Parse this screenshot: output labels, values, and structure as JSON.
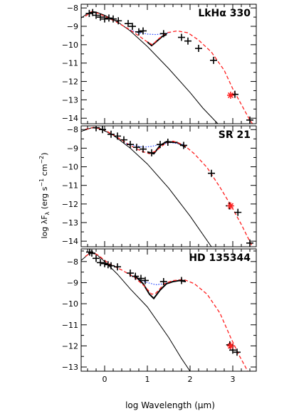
{
  "figure": {
    "xlabel": "log Wavelength (μm)",
    "ylabel_main": "log λF",
    "ylabel_sub": "λ",
    "ylabel_units": " (erg s",
    "ylabel_exp1": "−1",
    "ylabel_mid": " cm",
    "ylabel_exp2": "−2",
    "ylabel_close": ")",
    "colors": {
      "axes": "#000000",
      "photosphere": "#000000",
      "model_red": "#ff2020",
      "model_blue": "#2040ff",
      "star": "#ff2020"
    }
  },
  "chart_data": [
    {
      "type": "scatter",
      "title": "LkHα 330",
      "xlim": [
        -0.55,
        3.55
      ],
      "ylim": [
        -14.3,
        -7.8
      ],
      "xticks": [
        0,
        1,
        2,
        3
      ],
      "yticks": [
        -8,
        -9,
        -10,
        -11,
        -12,
        -13,
        -14
      ],
      "photometry": [
        [
          -0.36,
          -8.3
        ],
        [
          -0.28,
          -8.25
        ],
        [
          -0.2,
          -8.4
        ],
        [
          -0.1,
          -8.5
        ],
        [
          0.0,
          -8.6
        ],
        [
          0.1,
          -8.55
        ],
        [
          0.2,
          -8.6
        ],
        [
          0.32,
          -8.7
        ],
        [
          0.55,
          -8.85
        ],
        [
          0.65,
          -9.0
        ],
        [
          0.8,
          -9.3
        ],
        [
          0.9,
          -9.25
        ],
        [
          1.38,
          -9.4
        ],
        [
          1.8,
          -9.6
        ],
        [
          1.95,
          -9.8
        ],
        [
          2.2,
          -10.2
        ],
        [
          2.55,
          -10.85
        ],
        [
          3.05,
          -12.7
        ],
        [
          3.4,
          -14.1
        ]
      ],
      "submm_star": [
        [
          2.95,
          -12.75
        ]
      ],
      "photosphere": [
        [
          -0.55,
          -8.55
        ],
        [
          -0.4,
          -8.3
        ],
        [
          -0.3,
          -8.2
        ],
        [
          -0.2,
          -8.22
        ],
        [
          0.0,
          -8.4
        ],
        [
          0.3,
          -8.75
        ],
        [
          0.6,
          -9.25
        ],
        [
          1.0,
          -10.1
        ],
        [
          1.5,
          -11.3
        ],
        [
          2.0,
          -12.6
        ],
        [
          2.3,
          -13.45
        ],
        [
          2.65,
          -14.3
        ]
      ],
      "irs_spectrum": [
        [
          1.0,
          -9.85
        ],
        [
          1.1,
          -10.05
        ],
        [
          1.2,
          -9.85
        ],
        [
          1.35,
          -9.55
        ],
        [
          1.45,
          -9.45
        ]
      ],
      "model_red": [
        [
          -0.45,
          -8.45
        ],
        [
          -0.3,
          -8.2
        ],
        [
          -0.15,
          -8.3
        ],
        [
          0.05,
          -8.5
        ],
        [
          0.3,
          -8.8
        ],
        [
          0.6,
          -9.2
        ],
        [
          0.85,
          -9.6
        ],
        [
          1.0,
          -9.85
        ],
        [
          1.12,
          -10.0
        ],
        [
          1.25,
          -9.7
        ],
        [
          1.45,
          -9.35
        ],
        [
          1.7,
          -9.25
        ],
        [
          1.95,
          -9.35
        ],
        [
          2.2,
          -9.75
        ],
        [
          2.5,
          -10.4
        ],
        [
          2.8,
          -11.4
        ],
        [
          3.0,
          -12.4
        ],
        [
          3.2,
          -13.25
        ],
        [
          3.4,
          -14.1
        ],
        [
          3.55,
          -14.6
        ]
      ],
      "model_blue": [
        [
          0.6,
          -9.2
        ],
        [
          0.8,
          -9.35
        ],
        [
          1.0,
          -9.42
        ],
        [
          1.2,
          -9.45
        ],
        [
          1.4,
          -9.4
        ],
        [
          1.55,
          -9.32
        ]
      ]
    },
    {
      "type": "scatter",
      "title": "SR 21",
      "xlim": [
        -0.55,
        3.55
      ],
      "ylim": [
        -14.3,
        -7.8
      ],
      "xticks": [
        0,
        1,
        2,
        3
      ],
      "yticks": [
        -8,
        -9,
        -10,
        -11,
        -12,
        -13,
        -14
      ],
      "photometry": [
        [
          -0.2,
          -7.9
        ],
        [
          -0.05,
          -8.0
        ],
        [
          0.15,
          -8.25
        ],
        [
          0.3,
          -8.35
        ],
        [
          0.45,
          -8.55
        ],
        [
          0.6,
          -8.8
        ],
        [
          0.75,
          -8.95
        ],
        [
          0.9,
          -9.05
        ],
        [
          1.1,
          -9.25
        ],
        [
          1.3,
          -8.8
        ],
        [
          1.48,
          -8.68
        ],
        [
          1.85,
          -8.85
        ],
        [
          2.5,
          -10.35
        ],
        [
          2.92,
          -12.1
        ],
        [
          3.12,
          -12.45
        ],
        [
          3.4,
          -14.1
        ]
      ],
      "submm_star": [
        [
          2.95,
          -12.1
        ]
      ],
      "photosphere": [
        [
          -0.55,
          -8.1
        ],
        [
          -0.3,
          -7.9
        ],
        [
          -0.1,
          -7.95
        ],
        [
          0.2,
          -8.3
        ],
        [
          0.6,
          -9.0
        ],
        [
          1.0,
          -9.85
        ],
        [
          1.5,
          -11.15
        ],
        [
          2.0,
          -12.65
        ],
        [
          2.5,
          -14.3
        ]
      ],
      "irs_spectrum": [
        [
          1.0,
          -9.2
        ],
        [
          1.15,
          -9.3
        ],
        [
          1.3,
          -8.85
        ],
        [
          1.45,
          -8.65
        ],
        [
          1.7,
          -8.7
        ],
        [
          1.9,
          -8.95
        ]
      ],
      "model_red": [
        [
          -0.45,
          -7.98
        ],
        [
          -0.25,
          -7.88
        ],
        [
          0.0,
          -8.02
        ],
        [
          0.3,
          -8.42
        ],
        [
          0.6,
          -8.85
        ],
        [
          0.85,
          -9.15
        ],
        [
          1.05,
          -9.3
        ],
        [
          1.2,
          -9.15
        ],
        [
          1.4,
          -8.78
        ],
        [
          1.6,
          -8.62
        ],
        [
          1.85,
          -8.82
        ],
        [
          2.1,
          -9.3
        ],
        [
          2.4,
          -10.05
        ],
        [
          2.7,
          -11.1
        ],
        [
          2.95,
          -12.05
        ],
        [
          3.2,
          -13.1
        ],
        [
          3.45,
          -14.25
        ],
        [
          3.55,
          -14.6
        ]
      ],
      "model_blue": [
        [
          0.5,
          -8.75
        ],
        [
          0.7,
          -8.85
        ],
        [
          0.9,
          -8.95
        ],
        [
          1.1,
          -8.9
        ],
        [
          1.3,
          -8.8
        ],
        [
          1.55,
          -8.7
        ],
        [
          1.85,
          -8.8
        ]
      ]
    },
    {
      "type": "scatter",
      "title": "HD 135344",
      "xlim": [
        -0.55,
        3.55
      ],
      "ylim": [
        -13.2,
        -7.4
      ],
      "xticks": [
        0,
        1,
        2,
        3
      ],
      "yticks": [
        -8,
        -9,
        -10,
        -11,
        -12,
        -13
      ],
      "photometry": [
        [
          -0.35,
          -7.55
        ],
        [
          -0.3,
          -7.6
        ],
        [
          -0.2,
          -7.85
        ],
        [
          -0.1,
          -8.05
        ],
        [
          0.0,
          -8.1
        ],
        [
          0.08,
          -8.15
        ],
        [
          0.15,
          -8.2
        ],
        [
          0.3,
          -8.25
        ],
        [
          0.6,
          -8.55
        ],
        [
          0.72,
          -8.7
        ],
        [
          0.85,
          -8.8
        ],
        [
          0.95,
          -8.9
        ],
        [
          1.38,
          -8.95
        ],
        [
          1.8,
          -8.9
        ],
        [
          2.93,
          -11.95
        ],
        [
          3.0,
          -12.2
        ],
        [
          3.1,
          -12.3
        ]
      ],
      "submm_star": [
        [
          2.95,
          -12.0
        ]
      ],
      "photosphere": [
        [
          -0.55,
          -7.95
        ],
        [
          -0.35,
          -7.6
        ],
        [
          -0.2,
          -7.65
        ],
        [
          0.0,
          -8.0
        ],
        [
          0.3,
          -8.6
        ],
        [
          0.6,
          -9.3
        ],
        [
          1.0,
          -10.15
        ],
        [
          1.5,
          -11.6
        ],
        [
          1.8,
          -12.6
        ],
        [
          2.0,
          -13.2
        ]
      ],
      "irs_spectrum": [
        [
          0.7,
          -8.65
        ],
        [
          0.9,
          -9.05
        ],
        [
          1.05,
          -9.55
        ],
        [
          1.15,
          -9.75
        ],
        [
          1.3,
          -9.35
        ],
        [
          1.45,
          -9.05
        ],
        [
          1.6,
          -8.95
        ],
        [
          1.75,
          -8.9
        ],
        [
          1.9,
          -8.95
        ]
      ],
      "model_red": [
        [
          -0.45,
          -7.75
        ],
        [
          -0.3,
          -7.55
        ],
        [
          -0.15,
          -7.7
        ],
        [
          0.1,
          -8.1
        ],
        [
          0.4,
          -8.4
        ],
        [
          0.7,
          -8.75
        ],
        [
          0.95,
          -9.2
        ],
        [
          1.1,
          -9.55
        ],
        [
          1.2,
          -9.5
        ],
        [
          1.4,
          -9.05
        ],
        [
          1.6,
          -8.9
        ],
        [
          1.85,
          -8.85
        ],
        [
          2.1,
          -9.05
        ],
        [
          2.4,
          -9.55
        ],
        [
          2.7,
          -10.45
        ],
        [
          2.95,
          -11.6
        ],
        [
          3.15,
          -12.45
        ],
        [
          3.35,
          -13.2
        ]
      ],
      "model_blue": [
        [
          0.6,
          -8.65
        ],
        [
          0.8,
          -8.85
        ],
        [
          1.0,
          -9.0
        ],
        [
          1.2,
          -9.1
        ],
        [
          1.4,
          -9.05
        ],
        [
          1.6,
          -8.95
        ]
      ]
    }
  ]
}
